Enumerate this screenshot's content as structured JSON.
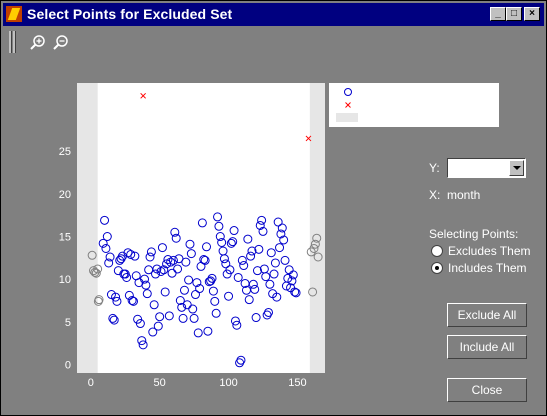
{
  "window": {
    "title": "Select Points for Excluded Set"
  },
  "controls": {
    "y_label": "Y:",
    "y_value": "",
    "x_label": "X:",
    "x_value": "month",
    "selecting_label": "Selecting Points:",
    "option_excludes": "Excludes Them",
    "option_includes": "Includes Them",
    "selected_option": "includes",
    "exclude_all": "Exclude All",
    "include_all": "Include All",
    "close": "Close"
  },
  "colors": {
    "included_marker": "#0000cc",
    "excluded_marker": "#ff0000",
    "outside_marker": "#808080",
    "band": "#e6e6e6"
  },
  "chart_data": {
    "type": "scatter",
    "xlim": [
      -10,
      170
    ],
    "ylim": [
      -1,
      33
    ],
    "xticks": [
      0,
      50,
      100,
      150
    ],
    "yticks": [
      0,
      5,
      10,
      15,
      20,
      25
    ],
    "bands": [
      [
        -10,
        5
      ],
      [
        159,
        170
      ]
    ],
    "series": [
      {
        "marker": "circle",
        "color": "#0000cc",
        "points": [
          [
            10,
            16.9
          ],
          [
            12,
            15
          ],
          [
            11,
            13.6
          ],
          [
            9,
            14.2
          ],
          [
            14,
            12.6
          ],
          [
            13,
            11.9
          ],
          [
            15,
            8.2
          ],
          [
            16,
            5.4
          ],
          [
            17,
            5.2
          ],
          [
            18,
            7.9
          ],
          [
            19,
            7.4
          ],
          [
            20,
            11
          ],
          [
            21,
            12.2
          ],
          [
            22,
            12.4
          ],
          [
            23,
            12.7
          ],
          [
            24,
            10.6
          ],
          [
            25,
            10.6
          ],
          [
            26,
            10.2
          ],
          [
            27,
            13.1
          ],
          [
            28,
            8.1
          ],
          [
            29,
            12.9
          ],
          [
            30,
            7.5
          ],
          [
            31,
            7.4
          ],
          [
            32,
            12.7
          ],
          [
            33,
            10.4
          ],
          [
            34,
            5.3
          ],
          [
            35,
            9.6
          ],
          [
            36,
            4.8
          ],
          [
            37,
            2.8
          ],
          [
            38,
            2.3
          ],
          [
            39,
            10
          ],
          [
            40,
            9.3
          ],
          [
            41,
            8.3
          ],
          [
            42,
            11.1
          ],
          [
            43,
            12.6
          ],
          [
            44,
            13.2
          ],
          [
            45,
            3.8
          ],
          [
            46,
            7
          ],
          [
            47,
            10.6
          ],
          [
            48,
            11.2
          ],
          [
            49,
            4.5
          ],
          [
            50,
            5.6
          ],
          [
            51,
            10.9
          ],
          [
            52,
            13.7
          ],
          [
            53,
            11.1
          ],
          [
            54,
            8.5
          ],
          [
            55,
            11.8
          ],
          [
            56,
            12.3
          ],
          [
            57,
            5.7
          ],
          [
            58,
            12
          ],
          [
            59,
            10.7
          ],
          [
            60,
            12.2
          ],
          [
            61,
            15.5
          ],
          [
            62,
            14.8
          ],
          [
            63,
            11.2
          ],
          [
            64,
            12.4
          ],
          [
            65,
            7.5
          ],
          [
            66,
            6.7
          ],
          [
            67,
            5.4
          ],
          [
            68,
            8.7
          ],
          [
            69,
            12
          ],
          [
            70,
            7
          ],
          [
            71,
            9.9
          ],
          [
            72,
            14.1
          ],
          [
            73,
            13
          ],
          [
            74,
            6.5
          ],
          [
            75,
            5.4
          ],
          [
            76,
            8.2
          ],
          [
            77,
            9.6
          ],
          [
            78,
            3.7
          ],
          [
            79,
            8.9
          ],
          [
            80,
            11.5
          ],
          [
            81,
            16.6
          ],
          [
            82,
            12.3
          ],
          [
            83,
            12.2
          ],
          [
            84,
            13.8
          ],
          [
            85,
            3.9
          ],
          [
            86,
            9.7
          ],
          [
            87,
            9.8
          ],
          [
            88,
            10.1
          ],
          [
            89,
            8.6
          ],
          [
            90,
            7.4
          ],
          [
            91,
            6
          ],
          [
            92,
            17.3
          ],
          [
            93,
            16.2
          ],
          [
            94,
            15
          ],
          [
            95,
            14.3
          ],
          [
            96,
            13.3
          ],
          [
            97,
            12.4
          ],
          [
            98,
            11.8
          ],
          [
            99,
            10.6
          ],
          [
            100,
            8
          ],
          [
            101,
            11.1
          ],
          [
            102,
            14.2
          ],
          [
            103,
            14.4
          ],
          [
            104,
            15.7
          ],
          [
            105,
            5.1
          ],
          [
            106,
            4.6
          ],
          [
            107,
            10.2
          ],
          [
            108,
            0.2
          ],
          [
            109,
            0.5
          ],
          [
            110,
            12.2
          ],
          [
            111,
            11.6
          ],
          [
            112,
            9.5
          ],
          [
            113,
            8.7
          ],
          [
            114,
            14.7
          ],
          [
            115,
            7.6
          ],
          [
            116,
            12.7
          ],
          [
            117,
            13.3
          ],
          [
            118,
            9.4
          ],
          [
            119,
            8.8
          ],
          [
            120,
            5.5
          ],
          [
            121,
            11
          ],
          [
            122,
            13.5
          ],
          [
            123,
            16.3
          ],
          [
            124,
            16.9
          ],
          [
            125,
            15.6
          ],
          [
            126,
            11.2
          ],
          [
            127,
            10.3
          ],
          [
            128,
            5.8
          ],
          [
            129,
            6.1
          ],
          [
            130,
            9.4
          ],
          [
            131,
            13.1
          ],
          [
            132,
            8.3
          ],
          [
            133,
            10.6
          ],
          [
            134,
            11.9
          ],
          [
            135,
            7.9
          ],
          [
            136,
            16.7
          ],
          [
            137,
            13.7
          ],
          [
            138,
            15.3
          ],
          [
            139,
            16
          ],
          [
            140,
            14.6
          ],
          [
            141,
            12.2
          ],
          [
            142,
            9.2
          ],
          [
            143,
            10.1
          ],
          [
            144,
            11.1
          ],
          [
            145,
            9
          ],
          [
            146,
            9.8
          ],
          [
            147,
            10.5
          ],
          [
            148,
            8.5
          ],
          [
            149,
            8.4
          ]
        ]
      },
      {
        "marker": "circle",
        "color": "#808080",
        "points": [
          [
            1,
            12.8
          ],
          [
            2,
            11
          ],
          [
            3,
            10.8
          ],
          [
            4,
            10.7
          ],
          [
            5,
            11.2
          ],
          [
            5.5,
            7.4
          ],
          [
            6,
            7.6
          ],
          [
            160,
            13.2
          ],
          [
            161,
            8.5
          ],
          [
            162,
            13.6
          ],
          [
            163,
            14.1
          ],
          [
            164,
            14.8
          ],
          [
            165,
            12.6
          ]
        ]
      },
      {
        "marker": "x",
        "color": "#ff0000",
        "points": [
          [
            38,
            31.5
          ],
          [
            158,
            26.5
          ]
        ]
      }
    ]
  }
}
